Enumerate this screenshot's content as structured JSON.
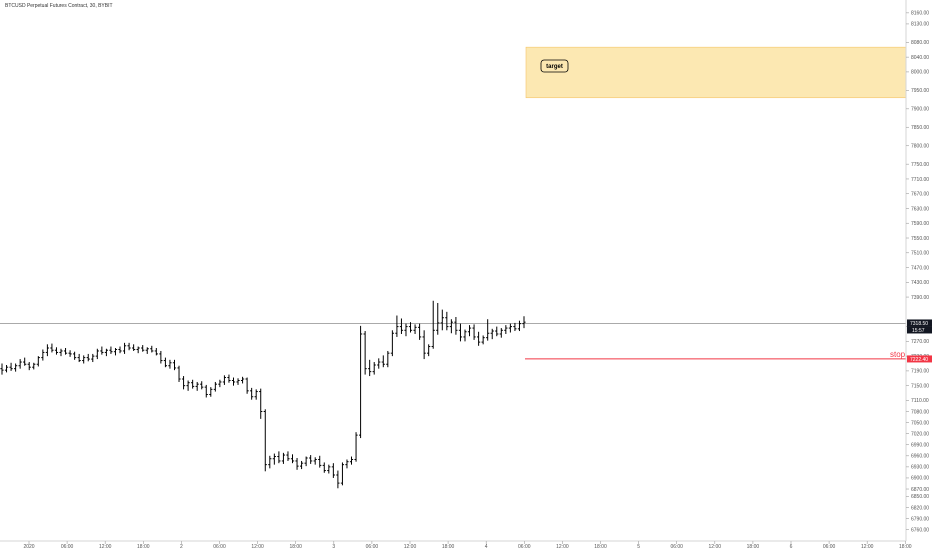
{
  "header": {
    "symbol_title": "BTCUSD Perpetual Futures Contract, 30, BYBIT"
  },
  "colors": {
    "background": "#ffffff",
    "bars": "#000000",
    "price_line": "#9e9e9e",
    "stop_line": "#f23645",
    "target_fill": "#fce8b2",
    "target_border": "#f5c46a"
  },
  "chart_data": {
    "type": "ohlc",
    "title": "BTCUSD Perpetual Futures Contract, 30, BYBIT",
    "interval": "30",
    "exchange": "BYBIT",
    "y_axis": {
      "ticks": [
        "8160.00",
        "8130.00",
        "8080.00",
        "8040.00",
        "8000.00",
        "7950.00",
        "7900.00",
        "7850.00",
        "7800.00",
        "7750.00",
        "7710.00",
        "7670.00",
        "7630.00",
        "7590.00",
        "7550.00",
        "7510.00",
        "7470.00",
        "7430.00",
        "7390.00",
        "7310.00",
        "7270.00",
        "7230.00",
        "7190.00",
        "7150.00",
        "7110.00",
        "7080.00",
        "7050.00",
        "7020.00",
        "6990.00",
        "6960.00",
        "6930.00",
        "6900.00",
        "6870.00",
        "6850.00",
        "6820.00",
        "6790.00",
        "6760.00"
      ]
    },
    "x_axis": {
      "ticks": [
        "2020",
        "06:00",
        "12:00",
        "18:00",
        "2",
        "06:00",
        "12:00",
        "18:00",
        "3",
        "06:00",
        "12:00",
        "18:00",
        "4",
        "06:00",
        "12:00",
        "18:00",
        "5",
        "06:00",
        "12:00",
        "18:00",
        "6",
        "06:00",
        "12:00",
        "18:00"
      ]
    },
    "series": [
      {
        "candles": [
          [
            7196,
            7210,
            7180,
            7192
          ],
          [
            7192,
            7206,
            7186,
            7200
          ],
          [
            7200,
            7212,
            7190,
            7196
          ],
          [
            7196,
            7210,
            7188,
            7204
          ],
          [
            7204,
            7222,
            7196,
            7214
          ],
          [
            7214,
            7226,
            7204,
            7208
          ],
          [
            7208,
            7214,
            7192,
            7200
          ],
          [
            7200,
            7212,
            7194,
            7208
          ],
          [
            7208,
            7230,
            7202,
            7226
          ],
          [
            7226,
            7248,
            7218,
            7240
          ],
          [
            7240,
            7262,
            7230,
            7252
          ],
          [
            7252,
            7264,
            7240,
            7246
          ],
          [
            7246,
            7254,
            7234,
            7240
          ],
          [
            7240,
            7250,
            7230,
            7244
          ],
          [
            7244,
            7252,
            7234,
            7238
          ],
          [
            7238,
            7246,
            7228,
            7236
          ],
          [
            7236,
            7242,
            7220,
            7226
          ],
          [
            7226,
            7236,
            7214,
            7218
          ],
          [
            7218,
            7232,
            7210,
            7226
          ],
          [
            7226,
            7236,
            7216,
            7222
          ],
          [
            7222,
            7236,
            7214,
            7230
          ],
          [
            7230,
            7250,
            7222,
            7244
          ],
          [
            7244,
            7256,
            7234,
            7240
          ],
          [
            7240,
            7250,
            7230,
            7246
          ],
          [
            7246,
            7256,
            7236,
            7242
          ],
          [
            7242,
            7252,
            7232,
            7248
          ],
          [
            7248,
            7256,
            7238,
            7244
          ],
          [
            7244,
            7266,
            7236,
            7258
          ],
          [
            7258,
            7266,
            7246,
            7252
          ],
          [
            7252,
            7262,
            7244,
            7248
          ],
          [
            7248,
            7256,
            7238,
            7252
          ],
          [
            7252,
            7260,
            7242,
            7246
          ],
          [
            7246,
            7254,
            7236,
            7250
          ],
          [
            7250,
            7258,
            7240,
            7244
          ],
          [
            7244,
            7252,
            7232,
            7236
          ],
          [
            7236,
            7244,
            7210,
            7218
          ],
          [
            7218,
            7226,
            7200,
            7204
          ],
          [
            7204,
            7220,
            7196,
            7212
          ],
          [
            7212,
            7220,
            7192,
            7198
          ],
          [
            7198,
            7204,
            7160,
            7168
          ],
          [
            7168,
            7176,
            7140,
            7150
          ],
          [
            7150,
            7164,
            7136,
            7158
          ],
          [
            7158,
            7166,
            7142,
            7148
          ],
          [
            7148,
            7160,
            7136,
            7154
          ],
          [
            7154,
            7162,
            7140,
            7146
          ],
          [
            7146,
            7152,
            7118,
            7126
          ],
          [
            7126,
            7146,
            7120,
            7140
          ],
          [
            7140,
            7160,
            7134,
            7154
          ],
          [
            7154,
            7166,
            7146,
            7160
          ],
          [
            7160,
            7178,
            7152,
            7172
          ],
          [
            7172,
            7180,
            7158,
            7164
          ],
          [
            7164,
            7172,
            7150,
            7160
          ],
          [
            7160,
            7170,
            7152,
            7164
          ],
          [
            7164,
            7174,
            7156,
            7168
          ],
          [
            7168,
            7172,
            7128,
            7136
          ],
          [
            7136,
            7144,
            7112,
            7120
          ],
          [
            7120,
            7140,
            7112,
            7134
          ],
          [
            7134,
            7142,
            7060,
            7080
          ],
          [
            7080,
            7086,
            6918,
            6936
          ],
          [
            6936,
            6960,
            6926,
            6952
          ],
          [
            6952,
            6966,
            6936,
            6958
          ],
          [
            6958,
            6972,
            6940,
            6946
          ],
          [
            6946,
            6968,
            6938,
            6962
          ],
          [
            6962,
            6972,
            6946,
            6952
          ],
          [
            6952,
            6964,
            6940,
            6946
          ],
          [
            6946,
            6954,
            6922,
            6932
          ],
          [
            6932,
            6946,
            6924,
            6940
          ],
          [
            6940,
            6958,
            6932,
            6954
          ],
          [
            6954,
            6962,
            6938,
            6946
          ],
          [
            6946,
            6956,
            6936,
            6950
          ],
          [
            6950,
            6960,
            6928,
            6934
          ],
          [
            6934,
            6942,
            6914,
            6920
          ],
          [
            6920,
            6936,
            6912,
            6930
          ],
          [
            6930,
            6940,
            6900,
            6908
          ],
          [
            6908,
            6920,
            6872,
            6886
          ],
          [
            6886,
            6942,
            6880,
            6936
          ],
          [
            6936,
            6950,
            6926,
            6944
          ],
          [
            6944,
            6958,
            6936,
            6950
          ],
          [
            6950,
            7024,
            6944,
            7016
          ],
          [
            7016,
            7312,
            7008,
            7290
          ],
          [
            7290,
            7298,
            7180,
            7196
          ],
          [
            7196,
            7220,
            7176,
            7188
          ],
          [
            7188,
            7214,
            7180,
            7206
          ],
          [
            7206,
            7224,
            7196,
            7214
          ],
          [
            7214,
            7232,
            7200,
            7208
          ],
          [
            7208,
            7244,
            7200,
            7238
          ],
          [
            7238,
            7300,
            7230,
            7292
          ],
          [
            7292,
            7340,
            7282,
            7310
          ],
          [
            7310,
            7332,
            7290,
            7300
          ],
          [
            7300,
            7318,
            7284,
            7310
          ],
          [
            7310,
            7322,
            7294,
            7300
          ],
          [
            7300,
            7316,
            7290,
            7308
          ],
          [
            7308,
            7318,
            7274,
            7282
          ],
          [
            7282,
            7300,
            7222,
            7238
          ],
          [
            7238,
            7262,
            7230,
            7256
          ],
          [
            7256,
            7380,
            7250,
            7300
          ],
          [
            7300,
            7374,
            7288,
            7320
          ],
          [
            7320,
            7356,
            7300,
            7334
          ],
          [
            7334,
            7350,
            7300,
            7310
          ],
          [
            7310,
            7330,
            7292,
            7322
          ],
          [
            7322,
            7336,
            7288,
            7300
          ],
          [
            7300,
            7318,
            7270,
            7282
          ],
          [
            7282,
            7302,
            7270,
            7296
          ],
          [
            7296,
            7314,
            7284,
            7306
          ],
          [
            7306,
            7316,
            7274,
            7282
          ],
          [
            7282,
            7296,
            7258,
            7268
          ],
          [
            7268,
            7286,
            7262,
            7280
          ],
          [
            7280,
            7330,
            7272,
            7292
          ],
          [
            7292,
            7304,
            7276,
            7298
          ],
          [
            7298,
            7310,
            7284,
            7290
          ],
          [
            7290,
            7306,
            7280,
            7300
          ],
          [
            7300,
            7314,
            7290,
            7306
          ],
          [
            7306,
            7318,
            7294,
            7310
          ],
          [
            7310,
            7320,
            7298,
            7304
          ],
          [
            7304,
            7326,
            7298,
            7318
          ],
          [
            7318,
            7338,
            7306,
            7322
          ]
        ]
      }
    ],
    "current_price_label": "7318.50",
    "countdown_label": "15:57",
    "annotations": {
      "target_label": "target",
      "stop_label": "stop",
      "stop_price_label": "7222.40"
    }
  }
}
